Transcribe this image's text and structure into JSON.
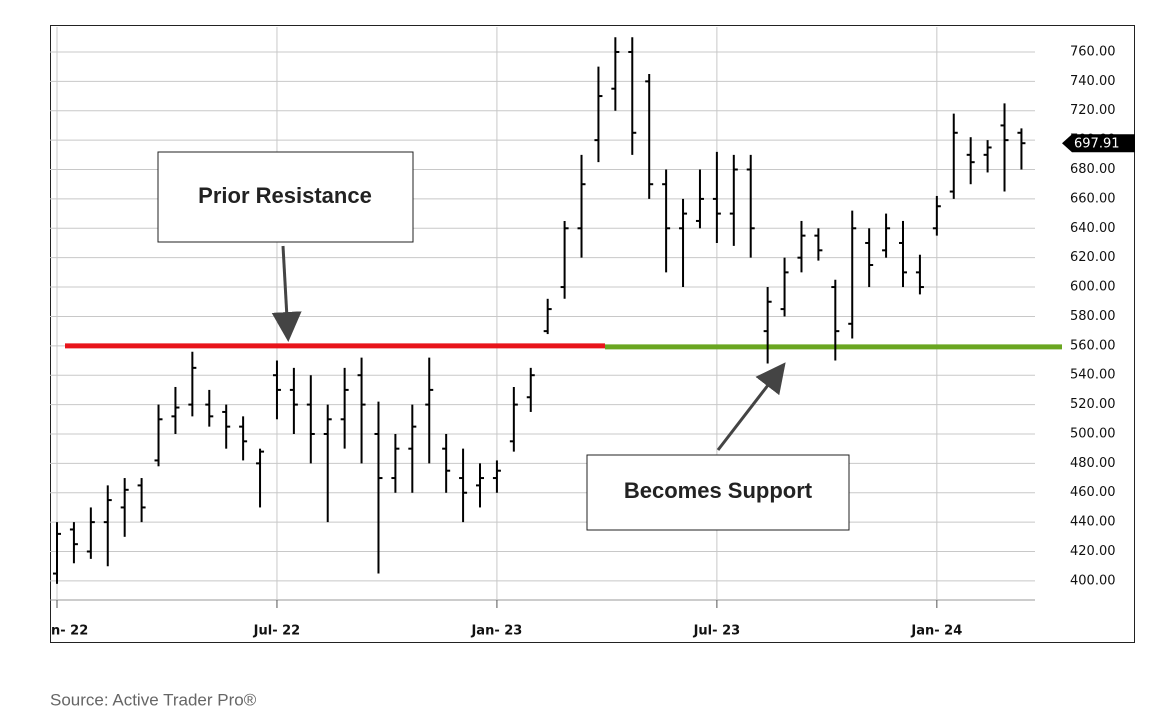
{
  "chart_data": {
    "type": "ohlc",
    "color": "#000000",
    "categories": [
      "n- 22",
      null,
      null,
      null,
      null,
      null,
      null,
      null,
      null,
      null,
      null,
      null,
      null,
      "Jul- 22",
      null,
      null,
      null,
      null,
      null,
      null,
      null,
      null,
      null,
      null,
      null,
      null,
      "Jan- 23",
      null,
      null,
      null,
      null,
      null,
      null,
      null,
      null,
      null,
      null,
      null,
      null,
      "Jul- 23",
      null,
      null,
      null,
      null,
      null,
      null,
      null,
      null,
      null,
      null,
      null,
      null,
      "Jan- 24",
      null,
      null,
      null,
      null,
      null
    ],
    "open": [
      405,
      435,
      420,
      440,
      450,
      465,
      482,
      512,
      520,
      520,
      515,
      505,
      480,
      540,
      530,
      520,
      500,
      510,
      540,
      500,
      470,
      490,
      520,
      490,
      470,
      465,
      470,
      495,
      525,
      570,
      600,
      640,
      700,
      735,
      760,
      740,
      670,
      640,
      645,
      660,
      650,
      680,
      570,
      585,
      620,
      635,
      600,
      575,
      630,
      625,
      630,
      610,
      640,
      665,
      690,
      690,
      710,
      705
    ],
    "high": [
      440,
      440,
      450,
      465,
      470,
      470,
      520,
      532,
      556,
      530,
      520,
      512,
      490,
      550,
      545,
      540,
      520,
      545,
      552,
      522,
      500,
      520,
      552,
      500,
      490,
      480,
      482,
      532,
      545,
      592,
      645,
      690,
      750,
      770,
      770,
      745,
      680,
      660,
      680,
      692,
      690,
      690,
      600,
      620,
      645,
      640,
      605,
      652,
      640,
      650,
      645,
      622,
      662,
      718,
      702,
      700,
      725,
      708
    ],
    "low": [
      398,
      412,
      415,
      410,
      430,
      440,
      478,
      500,
      512,
      505,
      490,
      482,
      450,
      510,
      500,
      480,
      440,
      490,
      480,
      405,
      460,
      460,
      480,
      460,
      440,
      450,
      460,
      488,
      515,
      568,
      592,
      620,
      685,
      720,
      690,
      660,
      610,
      600,
      640,
      630,
      628,
      620,
      548,
      580,
      610,
      618,
      550,
      565,
      600,
      620,
      600,
      595,
      635,
      660,
      670,
      678,
      665,
      680
    ],
    "close": [
      432,
      425,
      440,
      455,
      462,
      450,
      510,
      518,
      545,
      512,
      505,
      495,
      488,
      530,
      520,
      500,
      510,
      530,
      520,
      470,
      490,
      505,
      530,
      475,
      460,
      470,
      475,
      520,
      540,
      585,
      640,
      670,
      730,
      760,
      705,
      670,
      640,
      650,
      660,
      650,
      680,
      640,
      590,
      610,
      635,
      625,
      570,
      640,
      615,
      640,
      610,
      600,
      655,
      705,
      685,
      695,
      700,
      697.91
    ],
    "ylim": [
      387,
      777
    ],
    "yticks": [
      {
        "value": 400,
        "label": "400.00"
      },
      {
        "value": 420,
        "label": "420.00"
      },
      {
        "value": 440,
        "label": "440.00"
      },
      {
        "value": 460,
        "label": "460.00"
      },
      {
        "value": 480,
        "label": "480.00"
      },
      {
        "value": 500,
        "label": "500.00"
      },
      {
        "value": 520,
        "label": "520.00"
      },
      {
        "value": 540,
        "label": "540.00"
      },
      {
        "value": 560,
        "label": "560.00"
      },
      {
        "value": 580,
        "label": "580.00"
      },
      {
        "value": 600,
        "label": "600.00"
      },
      {
        "value": 620,
        "label": "620.00"
      },
      {
        "value": 640,
        "label": "640.00"
      },
      {
        "value": 660,
        "label": "660.00"
      },
      {
        "value": 680,
        "label": "680.00"
      },
      {
        "value": 700,
        "label": "700.00"
      },
      {
        "value": 720,
        "label": "720.00"
      },
      {
        "value": 740,
        "label": "740.00"
      },
      {
        "value": 760,
        "label": "760.00"
      }
    ],
    "grid": true,
    "level": {
      "value": 560,
      "colors": [
        "#e8141b",
        "#6aa621"
      ]
    },
    "annotations": [
      "Prior Resistance",
      "Becomes Support"
    ],
    "source": "Source: Active Trader Pro®"
  }
}
